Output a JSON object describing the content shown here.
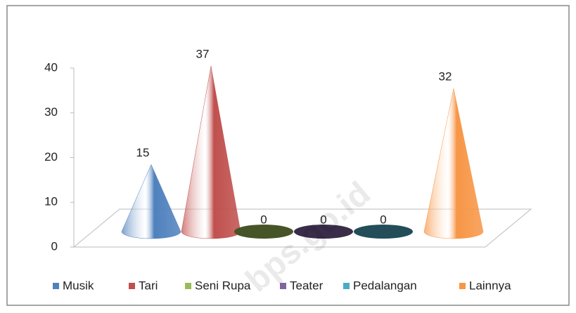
{
  "chart_data": {
    "type": "cone",
    "categories": [
      "Musik",
      "Tari",
      "Seni Rupa",
      "Teater",
      "Pedalangan",
      "Lainnya"
    ],
    "values": [
      15,
      37,
      0,
      0,
      0,
      32
    ],
    "colors": [
      "#4f81bd",
      "#c0504d",
      "#9bbb59",
      "#8064a2",
      "#4bacc6",
      "#f79646"
    ],
    "ylim": [
      0,
      40
    ],
    "yticks": [
      0,
      10,
      20,
      30,
      40
    ],
    "legend": "bottom",
    "watermark": "bps.go.id"
  }
}
